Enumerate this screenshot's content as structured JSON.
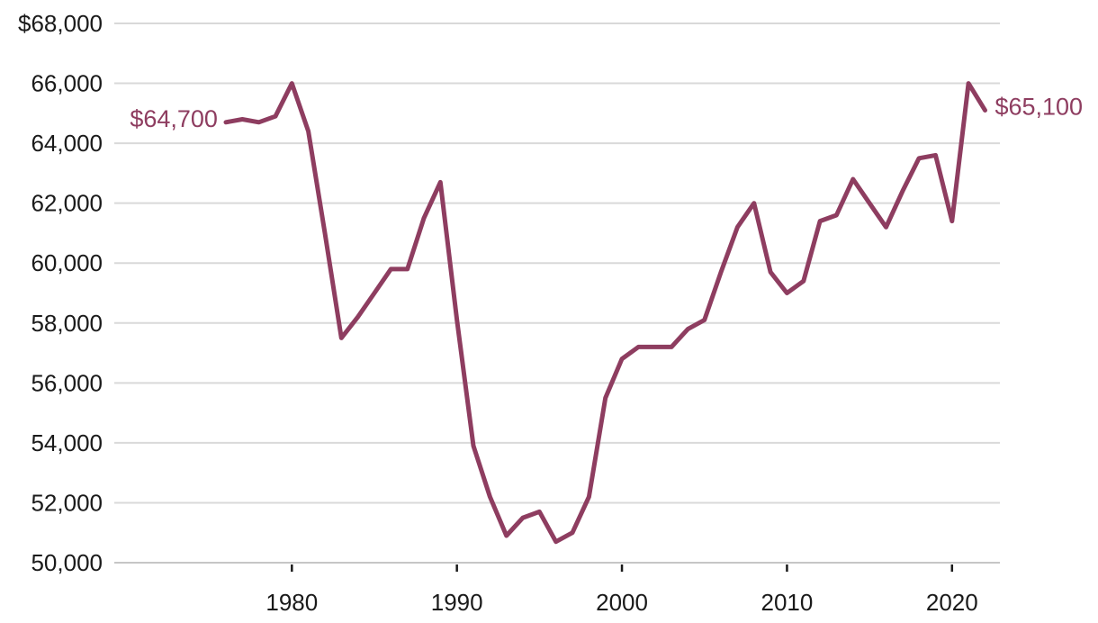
{
  "chart_data": {
    "type": "line",
    "title": "",
    "xlabel": "",
    "ylabel": "",
    "x": [
      1976,
      1977,
      1978,
      1979,
      1980,
      1981,
      1982,
      1983,
      1984,
      1985,
      1986,
      1987,
      1988,
      1989,
      1990,
      1991,
      1992,
      1993,
      1994,
      1995,
      1996,
      1997,
      1998,
      1999,
      2000,
      2001,
      2002,
      2003,
      2004,
      2005,
      2006,
      2007,
      2008,
      2009,
      2010,
      2011,
      2012,
      2013,
      2014,
      2015,
      2016,
      2017,
      2018,
      2019,
      2020,
      2021,
      2022
    ],
    "values": [
      64700,
      64800,
      64700,
      64900,
      66000,
      64400,
      61000,
      57500,
      58200,
      59000,
      59800,
      59800,
      61500,
      62700,
      58100,
      53900,
      52200,
      50900,
      51500,
      51700,
      50700,
      51000,
      52200,
      55500,
      56800,
      57200,
      57200,
      57200,
      57800,
      58100,
      59700,
      61200,
      62000,
      59700,
      59000,
      59400,
      61400,
      61600,
      62800,
      62000,
      61200,
      62400,
      63500,
      63600,
      61400,
      66000,
      65100
    ],
    "ylim": [
      50000,
      68000
    ],
    "xlim": [
      1976,
      2022
    ],
    "y_tick_interval": 2000,
    "y_ticks": [
      {
        "value": 68000,
        "label": "$68,000"
      },
      {
        "value": 66000,
        "label": "66,000"
      },
      {
        "value": 64000,
        "label": "64,000"
      },
      {
        "value": 62000,
        "label": "62,000"
      },
      {
        "value": 60000,
        "label": "60,000"
      },
      {
        "value": 58000,
        "label": "58,000"
      },
      {
        "value": 56000,
        "label": "56,000"
      },
      {
        "value": 54000,
        "label": "54,000"
      },
      {
        "value": 52000,
        "label": "52,000"
      },
      {
        "value": 50000,
        "label": "50,000"
      }
    ],
    "x_ticks": [
      {
        "value": 1980,
        "label": "1980"
      },
      {
        "value": 1990,
        "label": "1990"
      },
      {
        "value": 2000,
        "label": "2000"
      },
      {
        "value": 2010,
        "label": "2010"
      },
      {
        "value": 2020,
        "label": "2020"
      }
    ],
    "annotations": [
      {
        "text": "$64,700",
        "year": 1976,
        "value": 64700,
        "position": "start"
      },
      {
        "text": "$65,100",
        "year": 2022,
        "value": 65100,
        "position": "end"
      }
    ],
    "grid": "horizontal",
    "legend": "none",
    "colors": {
      "line": "#8e3d60",
      "gridline": "#d9d9d9",
      "axis_line": "#c6c6c6",
      "tick": "#1a1a1a",
      "axis_text": "#1a1a1a",
      "annotation_text": "#8e3d60"
    }
  }
}
